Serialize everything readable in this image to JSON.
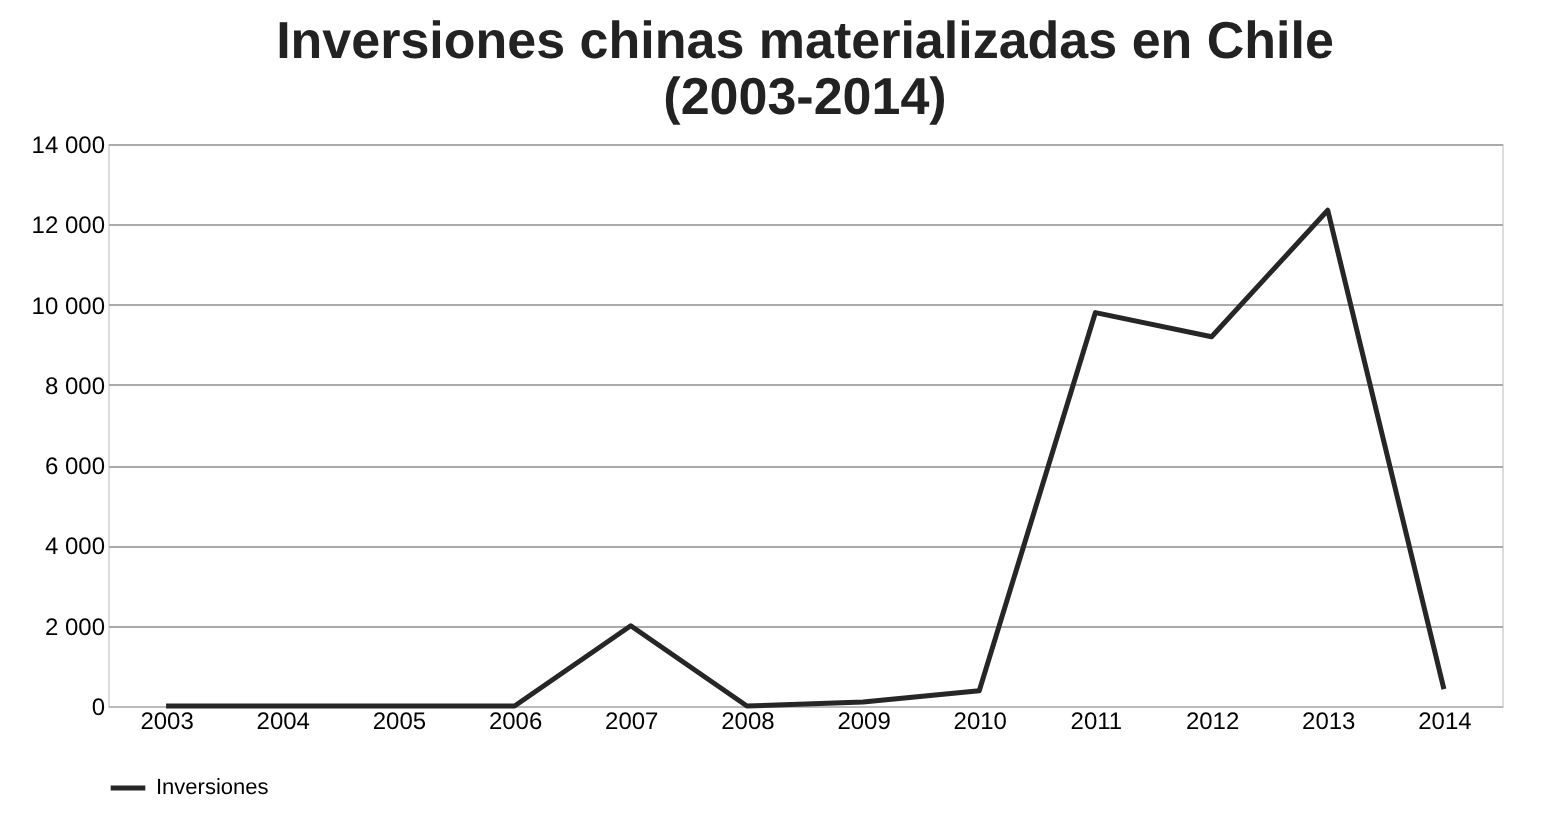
{
  "chart_data": {
    "type": "line",
    "title": [
      "Inversiones  chinas materializadas en Chile",
      "(2003-2014)"
    ],
    "categories": [
      "2003",
      "2004",
      "2005",
      "2006",
      "2007",
      "2008",
      "2009",
      "2010",
      "2011",
      "2012",
      "2013",
      "2014"
    ],
    "series": [
      {
        "name": "Inversiones",
        "color": "#262626",
        "values": [
          0,
          0,
          0,
          0,
          2000,
          0,
          100,
          380,
          9800,
          9200,
          12350,
          420
        ]
      }
    ],
    "ylim": [
      0,
      14000
    ],
    "yticks": [
      {
        "value": 0,
        "label": "0"
      },
      {
        "value": 2000,
        "label": "2 000"
      },
      {
        "value": 4000,
        "label": "4 000"
      },
      {
        "value": 6000,
        "label": "6 000"
      },
      {
        "value": 8000,
        "label": "8 000"
      },
      {
        "value": 10000,
        "label": "10 000"
      },
      {
        "value": 12000,
        "label": "12 000"
      },
      {
        "value": 14000,
        "label": "14 000"
      }
    ],
    "grid": "y",
    "legend": "bottom",
    "marker": "none",
    "line_style": "solid"
  }
}
